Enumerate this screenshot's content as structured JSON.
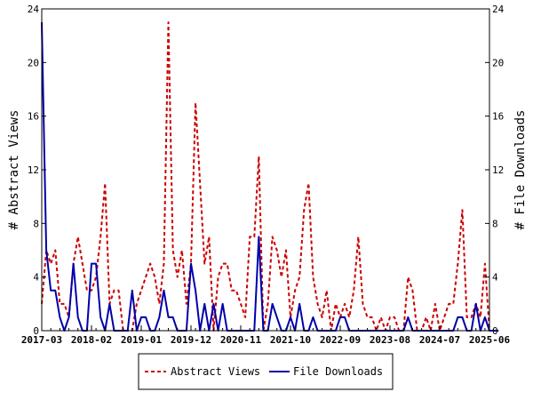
{
  "chart_data": {
    "type": "line",
    "x_start": "2017-03",
    "x_step": "1 month",
    "xlim": [
      "2017-03",
      "2025-06"
    ],
    "ylim_left": [
      0,
      24
    ],
    "ylim_right": [
      0,
      24
    ],
    "ylabel_left": "# Abstract Views",
    "ylabel_right": "# File Downloads",
    "ytick_labels": [
      "0",
      "4",
      "8",
      "12",
      "16",
      "20",
      "24"
    ],
    "xtick_labels": [
      "2017-03",
      "2018-02",
      "2019-01",
      "2019-12",
      "2020-11",
      "2021-10",
      "2022-09",
      "2023-08",
      "2024-07",
      "2025-06"
    ],
    "grid": false,
    "legend_placement": "bottom-center",
    "series": [
      {
        "name": "Abstract Views",
        "color": "#cc0000",
        "line_style": "dashed",
        "axis": "left",
        "values": [
          2,
          6,
          5,
          6,
          2,
          2,
          1,
          5,
          7,
          5,
          3,
          3,
          4,
          7,
          11,
          2,
          3,
          3,
          0,
          0,
          0,
          2,
          3,
          4,
          5,
          4,
          2,
          5,
          23,
          6,
          4,
          6,
          2,
          5,
          17,
          11,
          5,
          7,
          0,
          4,
          5,
          5,
          3,
          3,
          2,
          1,
          7,
          7,
          13,
          0,
          2,
          7,
          6,
          4,
          6,
          1,
          3,
          4,
          9,
          11,
          4,
          2,
          1,
          3,
          0,
          2,
          1,
          2,
          1,
          3,
          7,
          2,
          1,
          1,
          0,
          1,
          0,
          1,
          1,
          0,
          0,
          4,
          3,
          0,
          0,
          1,
          0,
          2,
          0,
          1,
          2,
          2,
          5,
          9,
          1,
          1,
          2,
          1,
          5,
          0,
          0,
          0
        ]
      },
      {
        "name": "File Downloads",
        "color": "#0000aa",
        "line_style": "solid",
        "axis": "right",
        "values": [
          23,
          6,
          3,
          3,
          1,
          0,
          1,
          5,
          1,
          0,
          0,
          5,
          5,
          1,
          0,
          2,
          0,
          0,
          0,
          0,
          3,
          0,
          1,
          1,
          0,
          0,
          1,
          3,
          1,
          1,
          0,
          0,
          0,
          5,
          3,
          0,
          2,
          0,
          2,
          0,
          2,
          0,
          0,
          0,
          0,
          0,
          0,
          0,
          7,
          0,
          0,
          2,
          1,
          0,
          0,
          1,
          0,
          2,
          0,
          0,
          1,
          0,
          0,
          0,
          0,
          0,
          1,
          1,
          0,
          0,
          0,
          0,
          0,
          0,
          0,
          0,
          0,
          0,
          0,
          0,
          0,
          1,
          0,
          0,
          0,
          0,
          0,
          0,
          0,
          0,
          0,
          0,
          1,
          1,
          0,
          0,
          2,
          0,
          1,
          0,
          0,
          0
        ]
      }
    ]
  }
}
